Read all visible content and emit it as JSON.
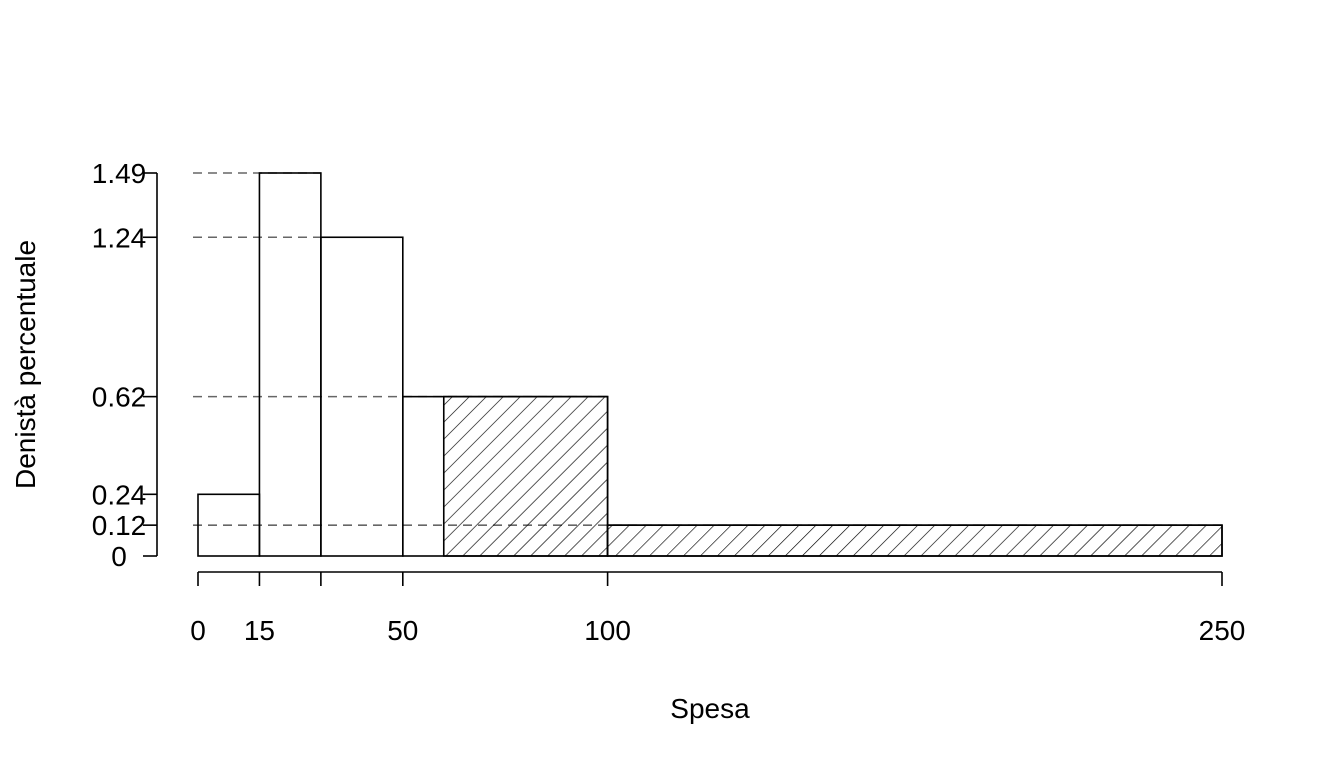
{
  "chart_data": {
    "type": "bar",
    "subtype": "histogram",
    "xlabel": "Spesa",
    "ylabel": "Denistà percentuale",
    "x_ticks": [
      0,
      15,
      30,
      50,
      100,
      250
    ],
    "x_tick_labels": [
      "0",
      "15",
      "",
      "50",
      "100",
      "250"
    ],
    "y_ticks": [
      0,
      0.12,
      0.24,
      0.62,
      1.24,
      1.49
    ],
    "y_tick_labels": [
      "0",
      "0.12",
      "0.24",
      "0.62",
      "1.24",
      "1.49"
    ],
    "xlim": [
      0,
      250
    ],
    "ylim": [
      0,
      1.49
    ],
    "bins": [
      {
        "from": 0,
        "to": 15,
        "density": 0.24,
        "hatched": false
      },
      {
        "from": 15,
        "to": 30,
        "density": 1.49,
        "hatched": false
      },
      {
        "from": 30,
        "to": 50,
        "density": 1.24,
        "hatched": false
      },
      {
        "from": 50,
        "to": 100,
        "density": 0.62,
        "hatched": false
      },
      {
        "from": 100,
        "to": 250,
        "density": 0.12,
        "hatched": true
      }
    ],
    "hatched_region": {
      "from": 60,
      "to": 250
    },
    "reference_lines": [
      1.49,
      1.24,
      0.62,
      0.12
    ],
    "grid": false,
    "legend": "none"
  }
}
